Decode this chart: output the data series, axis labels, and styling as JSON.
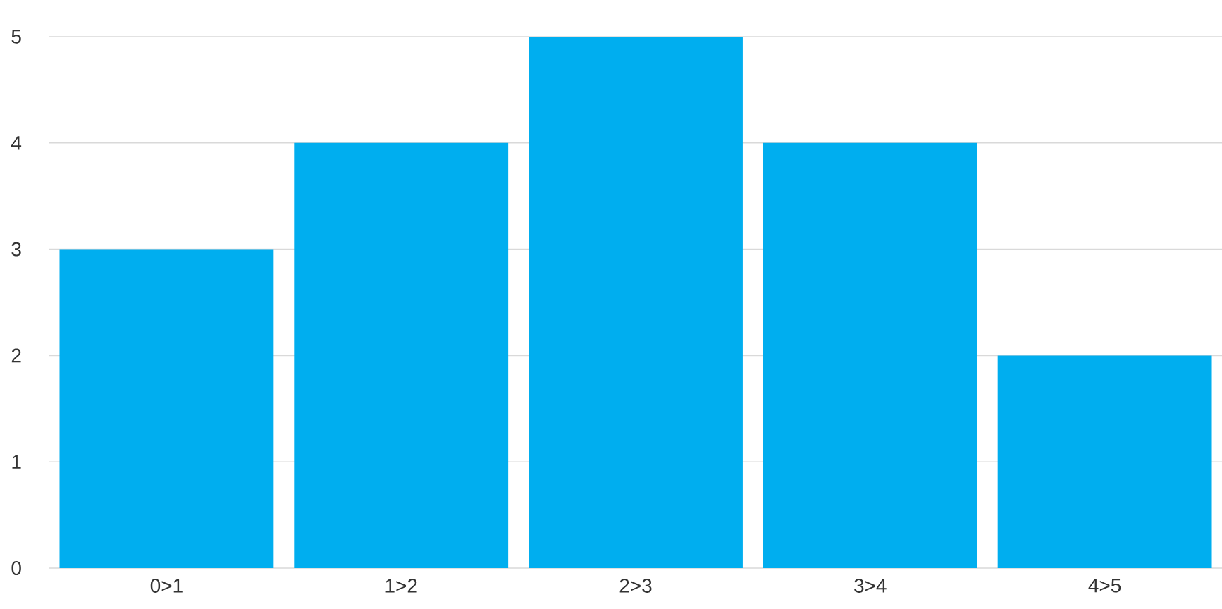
{
  "chart_data": {
    "type": "bar",
    "categories": [
      "0>1",
      "1>2",
      "2>3",
      "3>4",
      "4>5"
    ],
    "values": [
      3,
      4,
      5,
      4,
      2
    ],
    "color": "#00aeef",
    "ylim": [
      0,
      5
    ],
    "yticks": [
      0,
      1,
      2,
      3,
      4,
      5
    ],
    "grid": "y"
  }
}
